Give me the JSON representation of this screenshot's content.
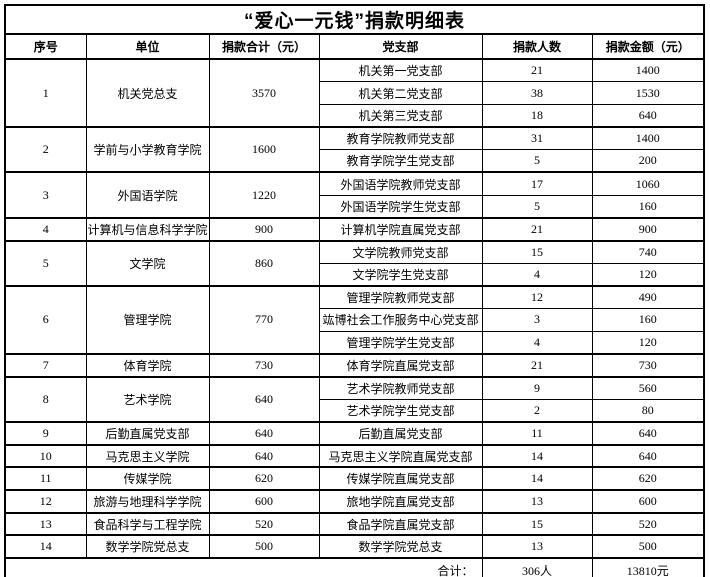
{
  "title": "“爱心一元钱”捐款明细表",
  "columns": [
    "序号",
    "单位",
    "捐款合计（元）",
    "党支部",
    "捐款人数",
    "捐款金额（元）"
  ],
  "groups": [
    {
      "no": "1",
      "unit": "机关党总支",
      "total": "3570",
      "branches": [
        {
          "branch": "机关第一党支部",
          "donors": "21",
          "amount": "1400"
        },
        {
          "branch": "机关第二党支部",
          "donors": "38",
          "amount": "1530"
        },
        {
          "branch": "机关第三党支部",
          "donors": "18",
          "amount": "640"
        }
      ]
    },
    {
      "no": "2",
      "unit": "学前与小学教育学院",
      "total": "1600",
      "branches": [
        {
          "branch": "教育学院教师党支部",
          "donors": "31",
          "amount": "1400"
        },
        {
          "branch": "教育学院学生党支部",
          "donors": "5",
          "amount": "200"
        }
      ]
    },
    {
      "no": "3",
      "unit": "外国语学院",
      "total": "1220",
      "branches": [
        {
          "branch": "外国语学院教师党支部",
          "donors": "17",
          "amount": "1060"
        },
        {
          "branch": "外国语学院学生党支部",
          "donors": "5",
          "amount": "160"
        }
      ]
    },
    {
      "no": "4",
      "unit": "计算机与信息科学学院",
      "total": "900",
      "branches": [
        {
          "branch": "计算机学院直属党支部",
          "donors": "21",
          "amount": "900"
        }
      ]
    },
    {
      "no": "5",
      "unit": "文学院",
      "total": "860",
      "branches": [
        {
          "branch": "文学院教师党支部",
          "donors": "15",
          "amount": "740"
        },
        {
          "branch": "文学院学生党支部",
          "donors": "4",
          "amount": "120"
        }
      ]
    },
    {
      "no": "6",
      "unit": "管理学院",
      "total": "770",
      "branches": [
        {
          "branch": "管理学院教师党支部",
          "donors": "12",
          "amount": "490"
        },
        {
          "branch": "竑博社会工作服务中心党支部",
          "donors": "3",
          "amount": "160"
        },
        {
          "branch": "管理学院学生党支部",
          "donors": "4",
          "amount": "120"
        }
      ]
    },
    {
      "no": "7",
      "unit": "体育学院",
      "total": "730",
      "branches": [
        {
          "branch": "体育学院直属党支部",
          "donors": "21",
          "amount": "730"
        }
      ]
    },
    {
      "no": "8",
      "unit": "艺术学院",
      "total": "640",
      "branches": [
        {
          "branch": "艺术学院教师党支部",
          "donors": "9",
          "amount": "560"
        },
        {
          "branch": "艺术学院学生党支部",
          "donors": "2",
          "amount": "80"
        }
      ]
    },
    {
      "no": "9",
      "unit": "后勤直属党支部",
      "total": "640",
      "branches": [
        {
          "branch": "后勤直属党支部",
          "donors": "11",
          "amount": "640"
        }
      ]
    },
    {
      "no": "10",
      "unit": "马克思主义学院",
      "total": "640",
      "branches": [
        {
          "branch": "马克思主义学院直属党支部",
          "donors": "14",
          "amount": "640"
        }
      ]
    },
    {
      "no": "11",
      "unit": "传媒学院",
      "total": "620",
      "branches": [
        {
          "branch": "传媒学院直属党支部",
          "donors": "14",
          "amount": "620"
        }
      ]
    },
    {
      "no": "12",
      "unit": "旅游与地理科学学院",
      "total": "600",
      "branches": [
        {
          "branch": "旅地学院直属党支部",
          "donors": "13",
          "amount": "600"
        }
      ]
    },
    {
      "no": "13",
      "unit": "食品科学与工程学院",
      "total": "520",
      "branches": [
        {
          "branch": "食品学院直属党支部",
          "donors": "15",
          "amount": "520"
        }
      ]
    },
    {
      "no": "14",
      "unit": "数学学院党总支",
      "total": "500",
      "branches": [
        {
          "branch": "数学学院党总支",
          "donors": "13",
          "amount": "500"
        }
      ]
    }
  ],
  "footer": {
    "label": "合计：",
    "donors": "306人",
    "amount": "13810元"
  },
  "colors": {
    "border": "#000000",
    "background": "#ffffff",
    "text": "#000000"
  }
}
